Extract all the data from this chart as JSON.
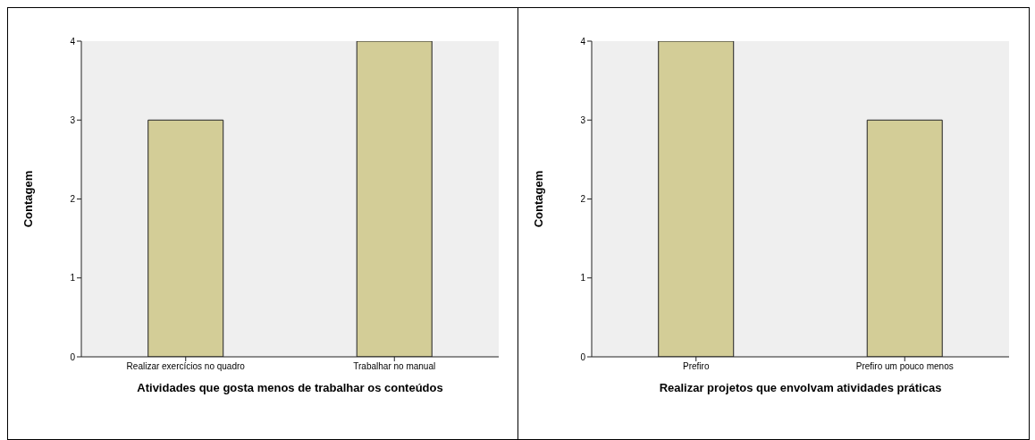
{
  "chart_data": [
    {
      "type": "bar",
      "xlabel": "Atividades que gosta menos de trabalhar os conteúdos",
      "ylabel": "Contagem",
      "categories": [
        "Realizar exercícios no quadro",
        "Trabalhar no manual"
      ],
      "values": [
        3,
        4
      ],
      "color": "#d3cd97",
      "ylim": [
        0,
        4
      ],
      "yticks": [
        0,
        1,
        2,
        3,
        4
      ]
    },
    {
      "type": "bar",
      "xlabel": "Realizar projetos que envolvam atividades práticas",
      "ylabel": "Contagem",
      "categories": [
        "Prefiro",
        "Prefiro um pouco menos"
      ],
      "values": [
        4,
        3
      ],
      "color": "#d3cd97",
      "ylim": [
        0,
        4
      ],
      "yticks": [
        0,
        1,
        2,
        3,
        4
      ]
    }
  ]
}
